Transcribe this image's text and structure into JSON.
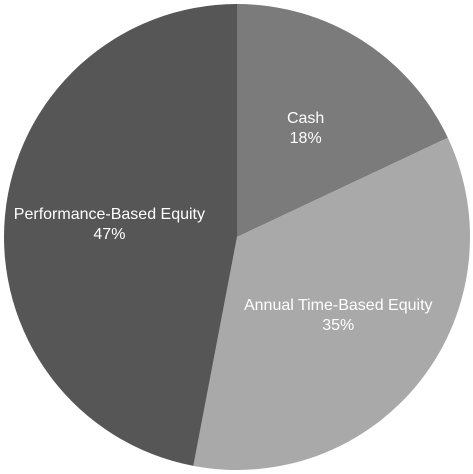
{
  "chart_data": {
    "type": "pie",
    "categories": [
      "Cash",
      "Annual Time-Based Equity",
      "Performance-Based Equity"
    ],
    "values": [
      18,
      35,
      47
    ],
    "value_labels": [
      "18%",
      "35%",
      "47%"
    ],
    "colors": [
      "#7b7b7b",
      "#a9a9a9",
      "#565656"
    ]
  }
}
